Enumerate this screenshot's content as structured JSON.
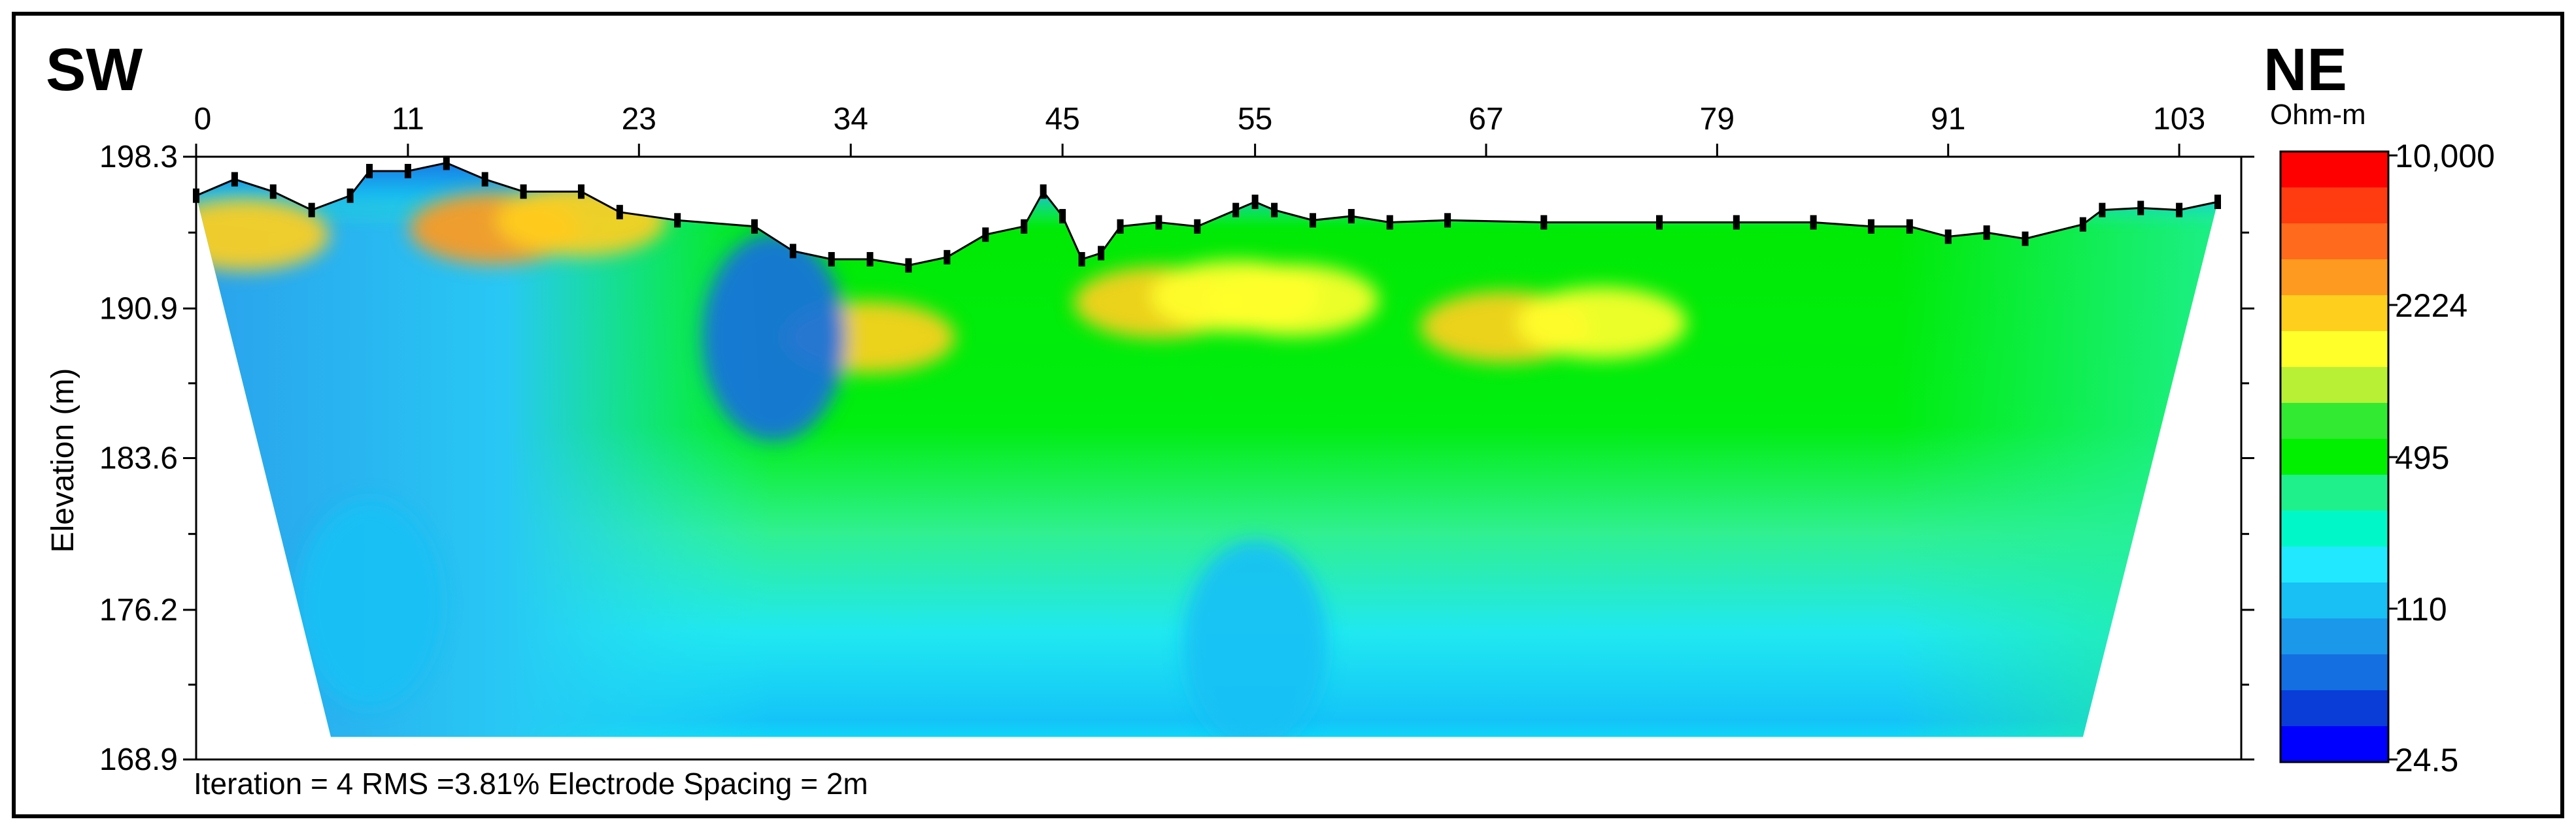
{
  "chart_data": {
    "type": "heatmap",
    "title": "",
    "corner_left": "SW",
    "corner_right": "NE",
    "ylabel": "Elevation (m)",
    "xlabel": "",
    "x_ticks": [
      "0",
      "11",
      "23",
      "34",
      "45",
      "55",
      "67",
      "79",
      "91",
      "103"
    ],
    "x_tick_values": [
      0,
      11,
      23,
      34,
      45,
      55,
      67,
      79,
      91,
      103
    ],
    "xlim": [
      0,
      105
    ],
    "y_ticks": [
      "198.3",
      "190.9",
      "183.6",
      "176.2",
      "168.9"
    ],
    "y_tick_values": [
      198.3,
      190.9,
      183.6,
      176.2,
      168.9
    ],
    "ylim": [
      168.9,
      198.3
    ],
    "caption": "Iteration = 4 RMS =3.81% Electrode Spacing = 2m",
    "legend": {
      "unit": "Ohm-m",
      "labels": [
        "10,000",
        "2224",
        "495",
        "110",
        "24.5"
      ],
      "colors": [
        "#ff0000",
        "#ff3b10",
        "#ff6a1c",
        "#ff9a20",
        "#ffcf1e",
        "#ffff2a",
        "#b8f036",
        "#32ea32",
        "#00f000",
        "#20f08c",
        "#00f8c8",
        "#22e8ff",
        "#18c0f4",
        "#1c98ea",
        "#1470e0",
        "#0a3cd8",
        "#0000ff"
      ]
    },
    "topography": [
      [
        0,
        196.4
      ],
      [
        2,
        197.2
      ],
      [
        4,
        196.6
      ],
      [
        6,
        195.7
      ],
      [
        8,
        196.4
      ],
      [
        9,
        197.6
      ],
      [
        11,
        197.6
      ],
      [
        13,
        198.0
      ],
      [
        15,
        197.2
      ],
      [
        17,
        196.6
      ],
      [
        20,
        196.6
      ],
      [
        22,
        195.6
      ],
      [
        25,
        195.2
      ],
      [
        29,
        194.9
      ],
      [
        31,
        193.7
      ],
      [
        33,
        193.3
      ],
      [
        35,
        193.3
      ],
      [
        37,
        193.0
      ],
      [
        39,
        193.4
      ],
      [
        41,
        194.5
      ],
      [
        43,
        194.9
      ],
      [
        44,
        196.6
      ],
      [
        45,
        195.4
      ],
      [
        46,
        193.3
      ],
      [
        47,
        193.6
      ],
      [
        48,
        194.9
      ],
      [
        50,
        195.1
      ],
      [
        52,
        194.9
      ],
      [
        54,
        195.7
      ],
      [
        55,
        196.1
      ],
      [
        56,
        195.7
      ],
      [
        58,
        195.2
      ],
      [
        60,
        195.4
      ],
      [
        62,
        195.1
      ],
      [
        65,
        195.2
      ],
      [
        70,
        195.1
      ],
      [
        76,
        195.1
      ],
      [
        80,
        195.1
      ],
      [
        84,
        195.1
      ],
      [
        87,
        194.9
      ],
      [
        89,
        194.9
      ],
      [
        91,
        194.4
      ],
      [
        93,
        194.6
      ],
      [
        95,
        194.3
      ],
      [
        98,
        195.0
      ],
      [
        99,
        195.7
      ],
      [
        101,
        195.8
      ],
      [
        103,
        195.7
      ],
      [
        105,
        196.1
      ]
    ],
    "base": {
      "elevation": 170.0,
      "x_start": 7,
      "x_end": 98
    },
    "anomalies": [
      {
        "x": 2.5,
        "y": 194.5,
        "value": 2224
      },
      {
        "x": 15.5,
        "y": 194.8,
        "value": 3000
      },
      {
        "x": 20,
        "y": 195.2,
        "value": 2000
      },
      {
        "x": 35,
        "y": 189.5,
        "value": 2224
      },
      {
        "x": 50,
        "y": 191.2,
        "value": 2224
      },
      {
        "x": 54,
        "y": 191.5,
        "value": 1500
      },
      {
        "x": 57,
        "y": 191.3,
        "value": 1500
      },
      {
        "x": 68,
        "y": 190.0,
        "value": 2224
      },
      {
        "x": 73,
        "y": 190.2,
        "value": 1500
      },
      {
        "x": 30,
        "y": 189.5,
        "value": 60
      },
      {
        "x": 9,
        "y": 176.5,
        "value": 110
      },
      {
        "x": 55,
        "y": 174.5,
        "value": 110
      }
    ]
  }
}
